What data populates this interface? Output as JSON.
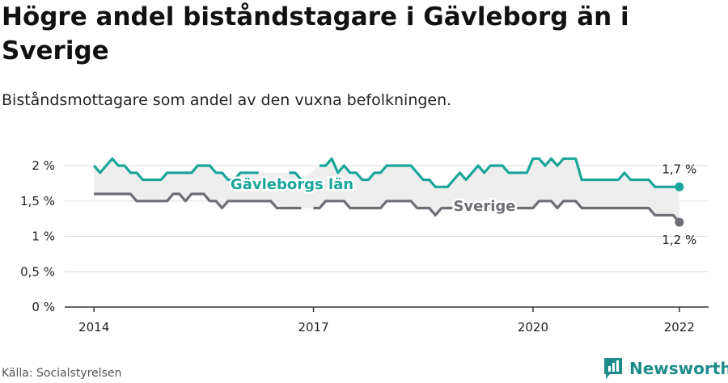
{
  "title": "Högre andel biståndstagare i Gävleborg än i Sverige",
  "subtitle": "Biståndsmottagare som andel av den vuxna befolkningen.",
  "source": "Källa: Socialstyrelsen",
  "brand": {
    "name": "Newsworthy",
    "icon": "newsworthy-bar-chart-icon"
  },
  "colors": {
    "gavleborg": "#19a698",
    "sverige": "#6e6c74",
    "band": "#eeeeee",
    "grid": "#dddddd",
    "axis": "#333333"
  },
  "chart_data": {
    "type": "line",
    "ylim": [
      0,
      2
    ],
    "y_ticks": [
      {
        "value": 0,
        "label": "0 %"
      },
      {
        "value": 0.5,
        "label": "0,5 %"
      },
      {
        "value": 1,
        "label": "1 %"
      },
      {
        "value": 1.5,
        "label": "1,5 %"
      },
      {
        "value": 2,
        "label": "2 %"
      }
    ],
    "x_ticks": [
      {
        "value": 2014,
        "label": "2014"
      },
      {
        "value": 2017,
        "label": "2017"
      },
      {
        "value": 2020,
        "label": "2020"
      },
      {
        "value": 2022,
        "label": "2022"
      }
    ],
    "xlim": [
      2013.6,
      2022.4
    ],
    "grid": true,
    "series": [
      {
        "name": "Gävleborgs län",
        "color": "#19a698",
        "end_label": "1,7 %",
        "points": [
          [
            2014.0,
            2.0
          ],
          [
            2014.083,
            1.9
          ],
          [
            2014.167,
            2.0
          ],
          [
            2014.25,
            2.1
          ],
          [
            2014.333,
            2.0
          ],
          [
            2014.417,
            2.0
          ],
          [
            2014.5,
            1.9
          ],
          [
            2014.583,
            1.9
          ],
          [
            2014.667,
            1.8
          ],
          [
            2014.75,
            1.8
          ],
          [
            2014.833,
            1.8
          ],
          [
            2014.917,
            1.8
          ],
          [
            2015.0,
            1.9
          ],
          [
            2015.083,
            1.9
          ],
          [
            2015.167,
            1.9
          ],
          [
            2015.25,
            1.9
          ],
          [
            2015.333,
            1.9
          ],
          [
            2015.417,
            2.0
          ],
          [
            2015.5,
            2.0
          ],
          [
            2015.583,
            2.0
          ],
          [
            2015.667,
            1.9
          ],
          [
            2015.75,
            1.9
          ],
          [
            2015.833,
            1.8
          ],
          [
            2015.917,
            1.8
          ],
          [
            2016.0,
            1.9
          ],
          [
            2016.083,
            1.9
          ],
          [
            2016.167,
            1.9
          ],
          [
            2016.25,
            1.9
          ],
          [
            2016.333,
            null
          ],
          [
            2016.417,
            null
          ],
          [
            2016.5,
            null
          ],
          [
            2016.583,
            null
          ],
          [
            2016.667,
            1.9
          ],
          [
            2016.75,
            1.9
          ],
          [
            2016.833,
            1.8
          ],
          [
            2016.917,
            null
          ],
          [
            2017.0,
            null
          ],
          [
            2017.083,
            2.0
          ],
          [
            2017.167,
            2.0
          ],
          [
            2017.25,
            2.1
          ],
          [
            2017.333,
            1.9
          ],
          [
            2017.417,
            2.0
          ],
          [
            2017.5,
            1.9
          ],
          [
            2017.583,
            1.9
          ],
          [
            2017.667,
            1.8
          ],
          [
            2017.75,
            1.8
          ],
          [
            2017.833,
            1.9
          ],
          [
            2017.917,
            1.9
          ],
          [
            2018.0,
            2.0
          ],
          [
            2018.083,
            2.0
          ],
          [
            2018.167,
            2.0
          ],
          [
            2018.25,
            2.0
          ],
          [
            2018.333,
            2.0
          ],
          [
            2018.417,
            1.9
          ],
          [
            2018.5,
            1.8
          ],
          [
            2018.583,
            1.8
          ],
          [
            2018.667,
            1.7
          ],
          [
            2018.75,
            1.7
          ],
          [
            2018.833,
            1.7
          ],
          [
            2018.917,
            1.8
          ],
          [
            2019.0,
            1.9
          ],
          [
            2019.083,
            1.8
          ],
          [
            2019.167,
            1.9
          ],
          [
            2019.25,
            2.0
          ],
          [
            2019.333,
            1.9
          ],
          [
            2019.417,
            2.0
          ],
          [
            2019.5,
            2.0
          ],
          [
            2019.583,
            2.0
          ],
          [
            2019.667,
            1.9
          ],
          [
            2019.75,
            1.9
          ],
          [
            2019.833,
            1.9
          ],
          [
            2019.917,
            1.9
          ],
          [
            2020.0,
            2.1
          ],
          [
            2020.083,
            2.1
          ],
          [
            2020.167,
            2.0
          ],
          [
            2020.25,
            2.1
          ],
          [
            2020.333,
            2.0
          ],
          [
            2020.417,
            2.1
          ],
          [
            2020.5,
            2.1
          ],
          [
            2020.583,
            2.1
          ],
          [
            2020.667,
            1.8
          ],
          [
            2020.75,
            1.8
          ],
          [
            2020.833,
            1.8
          ],
          [
            2020.917,
            1.8
          ],
          [
            2021.0,
            1.8
          ],
          [
            2021.083,
            1.8
          ],
          [
            2021.167,
            1.8
          ],
          [
            2021.25,
            1.9
          ],
          [
            2021.333,
            1.8
          ],
          [
            2021.417,
            1.8
          ],
          [
            2021.5,
            1.8
          ],
          [
            2021.583,
            1.8
          ],
          [
            2021.667,
            1.7
          ],
          [
            2021.75,
            1.7
          ],
          [
            2021.833,
            1.7
          ],
          [
            2021.917,
            1.7
          ],
          [
            2022.0,
            1.7
          ]
        ]
      },
      {
        "name": "Sverige",
        "color": "#6e6c74",
        "end_label": "1,2 %",
        "points": [
          [
            2014.0,
            1.6
          ],
          [
            2014.083,
            1.6
          ],
          [
            2014.167,
            1.6
          ],
          [
            2014.25,
            1.6
          ],
          [
            2014.333,
            1.6
          ],
          [
            2014.417,
            1.6
          ],
          [
            2014.5,
            1.6
          ],
          [
            2014.583,
            1.5
          ],
          [
            2014.667,
            1.5
          ],
          [
            2014.75,
            1.5
          ],
          [
            2014.833,
            1.5
          ],
          [
            2014.917,
            1.5
          ],
          [
            2015.0,
            1.5
          ],
          [
            2015.083,
            1.6
          ],
          [
            2015.167,
            1.6
          ],
          [
            2015.25,
            1.5
          ],
          [
            2015.333,
            1.6
          ],
          [
            2015.417,
            1.6
          ],
          [
            2015.5,
            1.6
          ],
          [
            2015.583,
            1.5
          ],
          [
            2015.667,
            1.5
          ],
          [
            2015.75,
            1.4
          ],
          [
            2015.833,
            1.5
          ],
          [
            2015.917,
            1.5
          ],
          [
            2016.0,
            1.5
          ],
          [
            2016.083,
            1.5
          ],
          [
            2016.167,
            1.5
          ],
          [
            2016.25,
            1.5
          ],
          [
            2016.333,
            1.5
          ],
          [
            2016.417,
            1.5
          ],
          [
            2016.5,
            1.4
          ],
          [
            2016.583,
            1.4
          ],
          [
            2016.667,
            1.4
          ],
          [
            2016.75,
            1.4
          ],
          [
            2016.833,
            1.4
          ],
          [
            2016.917,
            null
          ],
          [
            2017.0,
            1.4
          ],
          [
            2017.083,
            1.4
          ],
          [
            2017.167,
            1.5
          ],
          [
            2017.25,
            1.5
          ],
          [
            2017.333,
            1.5
          ],
          [
            2017.417,
            1.5
          ],
          [
            2017.5,
            1.4
          ],
          [
            2017.583,
            1.4
          ],
          [
            2017.667,
            1.4
          ],
          [
            2017.75,
            1.4
          ],
          [
            2017.833,
            1.4
          ],
          [
            2017.917,
            1.4
          ],
          [
            2018.0,
            1.5
          ],
          [
            2018.083,
            1.5
          ],
          [
            2018.167,
            1.5
          ],
          [
            2018.25,
            1.5
          ],
          [
            2018.333,
            1.5
          ],
          [
            2018.417,
            1.4
          ],
          [
            2018.5,
            1.4
          ],
          [
            2018.583,
            1.4
          ],
          [
            2018.667,
            1.3
          ],
          [
            2018.75,
            1.4
          ],
          [
            2018.833,
            1.4
          ],
          [
            2018.917,
            1.4
          ],
          [
            2019.0,
            1.4
          ],
          [
            2019.083,
            1.4
          ],
          [
            2019.167,
            1.4
          ],
          [
            2019.25,
            1.4
          ],
          [
            2019.333,
            1.4
          ],
          [
            2019.417,
            1.4
          ],
          [
            2019.5,
            1.4
          ],
          [
            2019.583,
            1.4
          ],
          [
            2019.667,
            1.4
          ],
          [
            2019.75,
            1.4
          ],
          [
            2019.833,
            1.4
          ],
          [
            2019.917,
            1.4
          ],
          [
            2020.0,
            1.4
          ],
          [
            2020.083,
            1.5
          ],
          [
            2020.167,
            1.5
          ],
          [
            2020.25,
            1.5
          ],
          [
            2020.333,
            1.4
          ],
          [
            2020.417,
            1.5
          ],
          [
            2020.5,
            1.5
          ],
          [
            2020.583,
            1.5
          ],
          [
            2020.667,
            1.4
          ],
          [
            2020.75,
            1.4
          ],
          [
            2020.833,
            1.4
          ],
          [
            2020.917,
            1.4
          ],
          [
            2021.0,
            1.4
          ],
          [
            2021.083,
            1.4
          ],
          [
            2021.167,
            1.4
          ],
          [
            2021.25,
            1.4
          ],
          [
            2021.333,
            1.4
          ],
          [
            2021.417,
            1.4
          ],
          [
            2021.5,
            1.4
          ],
          [
            2021.583,
            1.4
          ],
          [
            2021.667,
            1.3
          ],
          [
            2021.75,
            1.3
          ],
          [
            2021.833,
            1.3
          ],
          [
            2021.917,
            1.3
          ],
          [
            2022.0,
            1.2
          ]
        ]
      }
    ]
  }
}
